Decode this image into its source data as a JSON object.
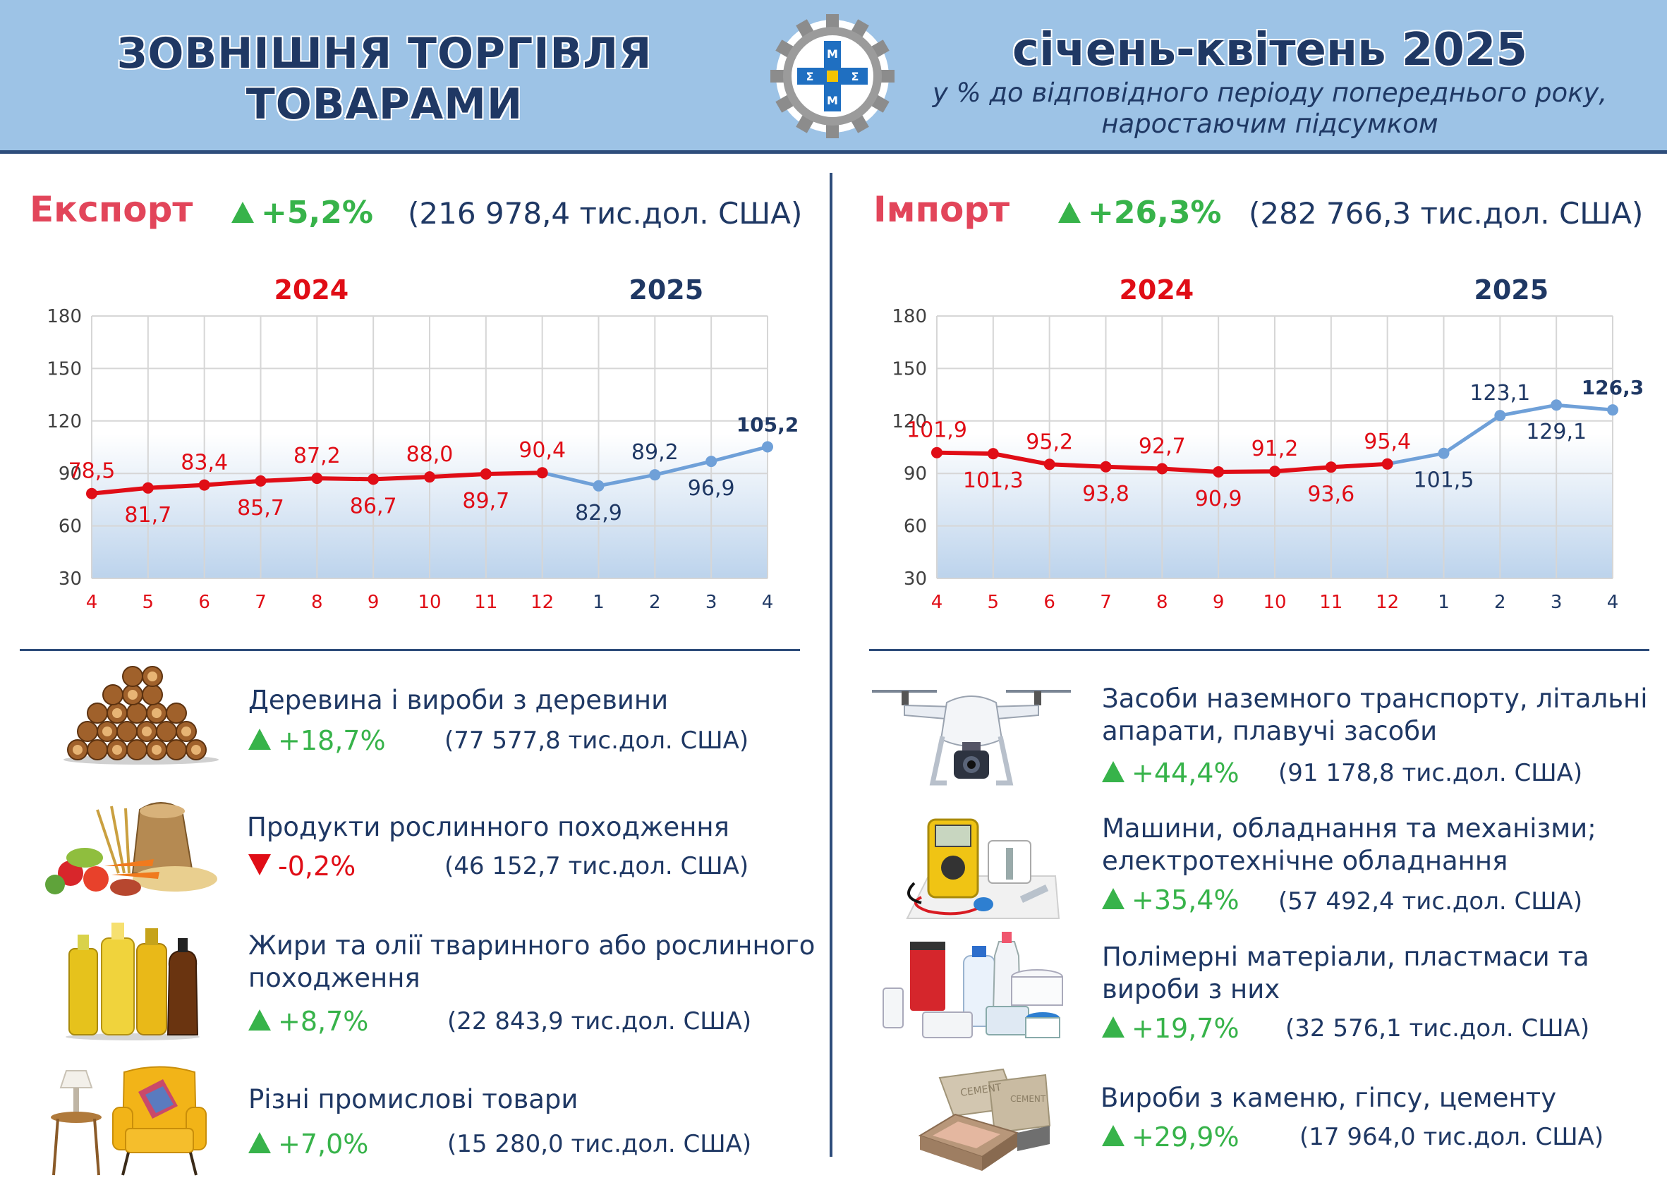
{
  "header": {
    "title_line1": "ЗОВНІШНЯ ТОРГІВЛЯ",
    "title_line2": "ТОВАРАМИ",
    "period": "січень-квітень 2025",
    "subtitle_line1": "у % до відповідного періоду попереднього року,",
    "subtitle_line2": "наростаючим підсумком"
  },
  "export": {
    "title": "Експорт",
    "change": "+5,2%",
    "value": "(216 978,4 тис.дол. США)"
  },
  "import": {
    "title": "Імпорт",
    "change": "+26,3%",
    "value": "(282 766,3 тис.дол. США)"
  },
  "chart_data": [
    {
      "type": "line",
      "id": "export",
      "title": "",
      "xlabel": "",
      "ylabel": "",
      "year_labels": [
        "2024",
        "2025"
      ],
      "categories": [
        "4",
        "5",
        "6",
        "7",
        "8",
        "9",
        "10",
        "11",
        "12",
        "1",
        "2",
        "3",
        "4"
      ],
      "values": [
        78.5,
        81.7,
        83.4,
        85.7,
        87.2,
        86.7,
        88.0,
        89.7,
        90.4,
        82.9,
        89.2,
        96.9,
        105.2
      ],
      "labels": [
        "78,5",
        "81,7",
        "83,4",
        "85,7",
        "87,2",
        "86,7",
        "88,0",
        "89,7",
        "90,4",
        "82,9",
        "89,2",
        "96,9",
        "105,2"
      ],
      "label_pos": [
        "above",
        "below",
        "above",
        "below",
        "above",
        "below",
        "above",
        "below",
        "above",
        "below",
        "above",
        "below",
        "above"
      ],
      "split_index": 8,
      "ylim": [
        30,
        180
      ],
      "yticks": [
        30,
        60,
        90,
        120,
        150,
        180
      ],
      "grid": true,
      "colors": {
        "y2024": "#e00d16",
        "y2025": "#6fa0d8",
        "label2025": "#1f3864"
      }
    },
    {
      "type": "line",
      "id": "import",
      "title": "",
      "xlabel": "",
      "ylabel": "",
      "year_labels": [
        "2024",
        "2025"
      ],
      "categories": [
        "4",
        "5",
        "6",
        "7",
        "8",
        "9",
        "10",
        "11",
        "12",
        "1",
        "2",
        "3",
        "4"
      ],
      "values": [
        101.9,
        101.3,
        95.2,
        93.8,
        92.7,
        90.9,
        91.2,
        93.6,
        95.4,
        101.5,
        123.1,
        129.1,
        126.3
      ],
      "labels": [
        "101,9",
        "101,3",
        "95,2",
        "93,8",
        "92,7",
        "90,9",
        "91,2",
        "93,6",
        "95,4",
        "101,5",
        "123,1",
        "129,1",
        "126,3"
      ],
      "label_pos": [
        "above",
        "below",
        "above",
        "below",
        "above",
        "below",
        "above",
        "below",
        "above",
        "below",
        "above",
        "below",
        "above"
      ],
      "split_index": 8,
      "ylim": [
        30,
        180
      ],
      "yticks": [
        30,
        60,
        90,
        120,
        150,
        180
      ],
      "grid": true,
      "colors": {
        "y2024": "#e00d16",
        "y2025": "#6fa0d8",
        "label2025": "#1f3864"
      }
    }
  ],
  "export_items": [
    {
      "icon": "firewood-icon",
      "name_line1": "Деревина і вироби з деревини",
      "name_line2": "",
      "change": "+18,7%",
      "direction": "up",
      "value": "(77 577,8 тис.дол. США)"
    },
    {
      "icon": "vegetables-icon",
      "name_line1": "Продукти рослинного походження",
      "name_line2": "",
      "change": "-0,2%",
      "direction": "down",
      "value": "(46 152,7 тис.дол. США)"
    },
    {
      "icon": "oil-bottles-icon",
      "name_line1": "Жири та олії тваринного або рослинного",
      "name_line2": "походження",
      "change": "+8,7%",
      "direction": "up",
      "value": "(22 843,9 тис.дол. США)"
    },
    {
      "icon": "armchair-icon",
      "name_line1": "Різні промислові товари",
      "name_line2": "",
      "change": "+7,0%",
      "direction": "up",
      "value": "(15 280,0 тис.дол. США)"
    }
  ],
  "import_items": [
    {
      "icon": "drone-icon",
      "name_line1": "Засоби наземного транспорту, літальні",
      "name_line2": "апарати, плавучі засоби",
      "change": "+44,4%",
      "direction": "up",
      "value": "(91 178,8 тис.дол. США)"
    },
    {
      "icon": "multimeter-icon",
      "name_line1": "Машини, обладнання та механізми;",
      "name_line2": "електротехнічне обладнання",
      "change": "+35,4%",
      "direction": "up",
      "value": "(57 492,4 тис.дол. США)"
    },
    {
      "icon": "plastic-containers-icon",
      "name_line1": "Полімерні матеріали, пластмаси та",
      "name_line2": "вироби з них",
      "change": "+19,7%",
      "direction": "up",
      "value": "(32 576,1 тис.дол. США)"
    },
    {
      "icon": "cement-bags-icon",
      "name_line1": "Вироби з каменю, гіпсу, цементу",
      "name_line2": "",
      "change": "+29,9%",
      "direction": "up",
      "value": "(17 964,0 тис.дол. США)"
    }
  ]
}
